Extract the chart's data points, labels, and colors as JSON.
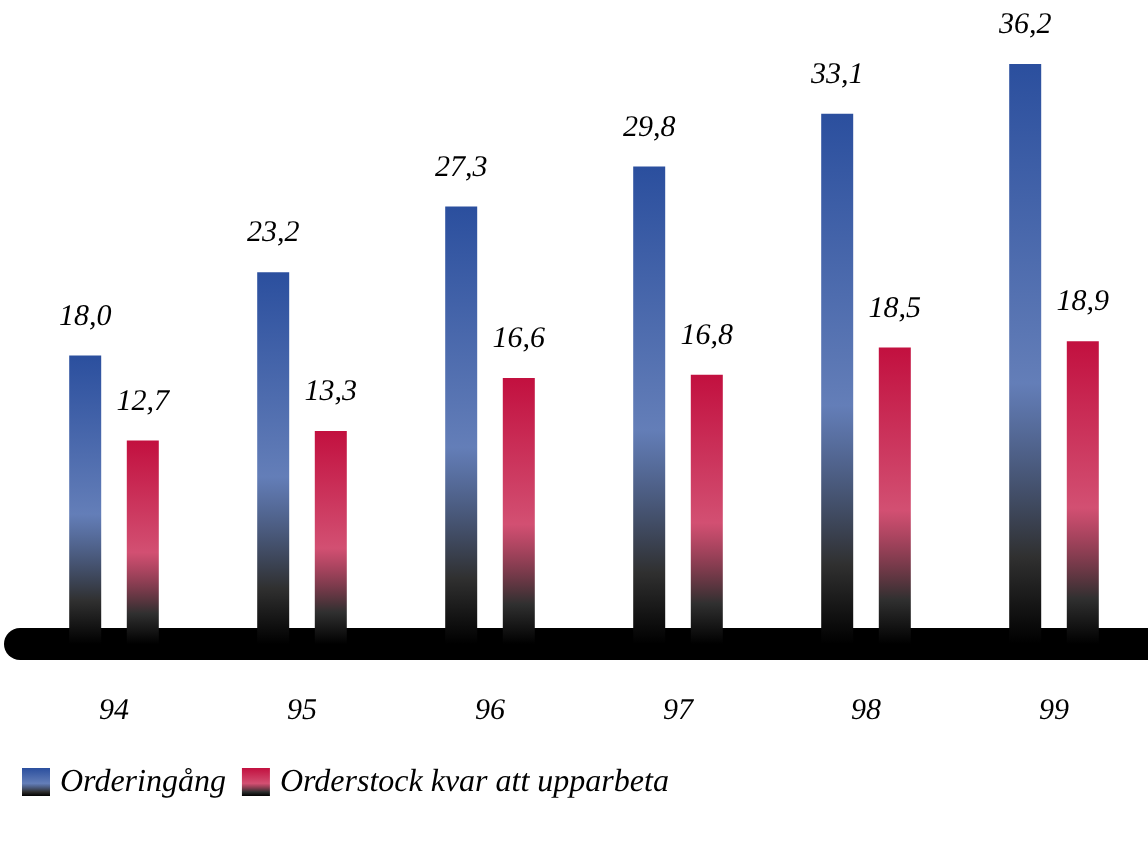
{
  "chart_data": {
    "type": "bar",
    "categories": [
      "94",
      "95",
      "96",
      "97",
      "98",
      "99"
    ],
    "series": [
      {
        "name": "Orderingång",
        "color": "#2b4f9e",
        "values": [
          18.0,
          23.2,
          27.3,
          29.8,
          33.1,
          36.2
        ],
        "value_labels": [
          "18,0",
          "23,2",
          "27,3",
          "29,8",
          "33,1",
          "36,2"
        ]
      },
      {
        "name": "Orderstock kvar att upparbeta",
        "color": "#c2103f",
        "values": [
          12.7,
          13.3,
          16.6,
          16.8,
          18.5,
          18.9
        ],
        "value_labels": [
          "12,7",
          "13,3",
          "16,6",
          "16,8",
          "18,5",
          "18,9"
        ]
      }
    ],
    "legend": "bottom left"
  }
}
